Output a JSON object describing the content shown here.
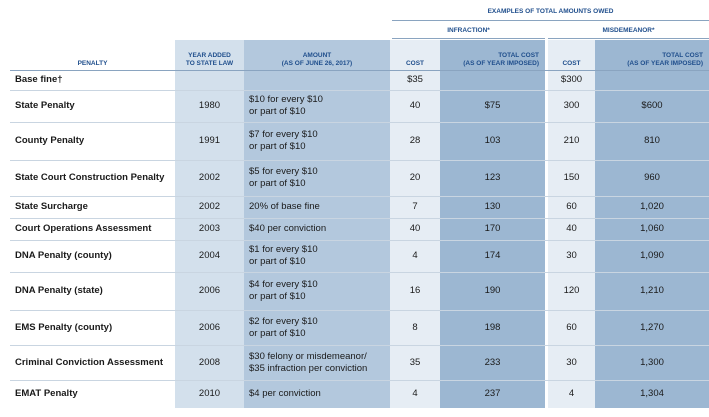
{
  "table": {
    "group_title": "EXAMPLES OF TOTAL AMOUNTS OWED",
    "subgroups": [
      "INFRACTION*",
      "MISDEMEANOR*"
    ],
    "columns": [
      [
        "PENALTY"
      ],
      [
        "YEAR ADDED",
        "TO STATE LAW"
      ],
      [
        "AMOUNT",
        "(AS OF JUNE 26, 2017)"
      ],
      [
        "COST"
      ],
      [
        "TOTAL COST",
        "(AS OF YEAR IMPOSED)"
      ],
      [
        "COST"
      ],
      [
        "TOTAL COST",
        "(AS OF YEAR IMPOSED)"
      ]
    ],
    "rows": [
      [
        "Base fine†",
        null,
        null,
        "$35",
        null,
        "$300",
        null
      ],
      [
        "State Penalty",
        "1980",
        [
          "$10 for every $10",
          "or part of $10"
        ],
        "40",
        "$75",
        "300",
        "$600"
      ],
      [
        "County Penalty",
        "1991",
        [
          "$7 for every $10",
          "or part of $10"
        ],
        "28",
        "103",
        "210",
        "810"
      ],
      [
        "State Court Construction Penalty",
        "2002",
        [
          "$5 for every $10",
          "or part of $10"
        ],
        "20",
        "123",
        "150",
        "960"
      ],
      [
        "State Surcharge",
        "2002",
        [
          "20% of base fine"
        ],
        "7",
        "130",
        "60",
        "1,020"
      ],
      [
        "Court Operations Assessment",
        "2003",
        [
          "$40 per conviction"
        ],
        "40",
        "170",
        "40",
        "1,060"
      ],
      [
        "DNA Penalty (county)",
        "2004",
        [
          "$1 for every $10",
          "or part of $10"
        ],
        "4",
        "174",
        "30",
        "1,090"
      ],
      [
        "DNA Penalty (state)",
        "2006",
        [
          "$4 for every $10",
          "or part of $10"
        ],
        "16",
        "190",
        "120",
        "1,210"
      ],
      [
        "EMS Penalty (county)",
        "2006",
        [
          "$2 for every $10",
          "or part of $10"
        ],
        "8",
        "198",
        "60",
        "1,270"
      ],
      [
        "Criminal Conviction Assessment",
        "2008",
        [
          "$30 felony or misdemeanor/",
          "$35 infraction per conviction"
        ],
        "35",
        "233",
        "30",
        "1,300"
      ],
      [
        "EMAT Penalty",
        "2010",
        [
          "$4 per conviction"
        ],
        "4",
        "237",
        "4",
        "1,304"
      ]
    ]
  }
}
